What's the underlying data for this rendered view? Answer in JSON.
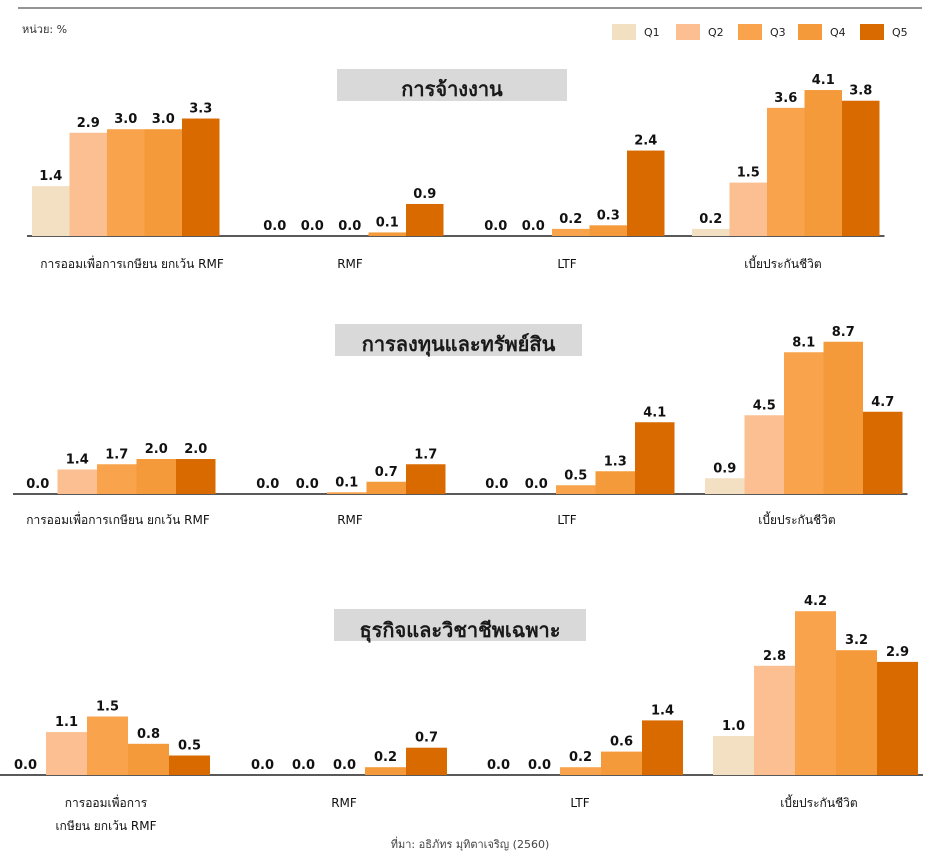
{
  "unit_label": "หน่วย: %",
  "source_note": "ที่มา: อธิภัทร มุทิตาเจริญ (2560)",
  "colors": {
    "Q1": "#f3dfc1",
    "Q2": "#fbbf92",
    "Q3": "#f9a34c",
    "Q4": "#f59a3a",
    "Q5": "#d86a00",
    "title_box": "#d9d9d9"
  },
  "legend": [
    "Q1",
    "Q2",
    "Q3",
    "Q4",
    "Q5"
  ],
  "chart_data": [
    {
      "type": "bar",
      "title": "การจ้างงาน",
      "categories": [
        "การออมเพื่อการเกษียน ยกเว้น RMF",
        "RMF",
        "LTF",
        "เบี้ยประกันชีวิต"
      ],
      "series": [
        {
          "name": "Q1",
          "values": [
            1.4,
            0.0,
            0.0,
            0.2
          ]
        },
        {
          "name": "Q2",
          "values": [
            2.9,
            0.0,
            0.0,
            1.5
          ]
        },
        {
          "name": "Q3",
          "values": [
            3.0,
            0.0,
            0.2,
            3.6
          ]
        },
        {
          "name": "Q4",
          "values": [
            3.0,
            0.1,
            0.3,
            4.1
          ]
        },
        {
          "name": "Q5",
          "values": [
            3.3,
            0.9,
            2.4,
            3.8
          ]
        }
      ]
    },
    {
      "type": "bar",
      "title": "การลงทุนและทรัพย์สิน",
      "categories": [
        "การออมเพื่อการเกษียน ยกเว้น RMF",
        "RMF",
        "LTF",
        "เบี้ยประกันชีวิต"
      ],
      "series": [
        {
          "name": "Q1",
          "values": [
            0.0,
            0.0,
            0.0,
            0.9
          ]
        },
        {
          "name": "Q2",
          "values": [
            1.4,
            0.0,
            0.0,
            4.5
          ]
        },
        {
          "name": "Q3",
          "values": [
            1.7,
            0.1,
            0.5,
            8.1
          ]
        },
        {
          "name": "Q4",
          "values": [
            2.0,
            0.7,
            1.3,
            8.7
          ]
        },
        {
          "name": "Q5",
          "values": [
            2.0,
            1.7,
            4.1,
            4.7
          ]
        }
      ]
    },
    {
      "type": "bar",
      "title": "ธุรกิจและวิชาชีพเฉพาะ",
      "categories": [
        "การออมเพื่อการ\nเกษียน ยกเว้น RMF",
        "RMF",
        "LTF",
        "เบี้ยประกันชีวิต"
      ],
      "series": [
        {
          "name": "Q1",
          "values": [
            0.0,
            0.0,
            0.0,
            1.0
          ]
        },
        {
          "name": "Q2",
          "values": [
            1.1,
            0.0,
            0.0,
            2.8
          ]
        },
        {
          "name": "Q3",
          "values": [
            1.5,
            0.0,
            0.2,
            4.2
          ]
        },
        {
          "name": "Q4",
          "values": [
            0.8,
            0.2,
            0.6,
            3.2
          ]
        },
        {
          "name": "Q5",
          "values": [
            0.5,
            0.7,
            1.4,
            2.9
          ]
        }
      ]
    }
  ]
}
